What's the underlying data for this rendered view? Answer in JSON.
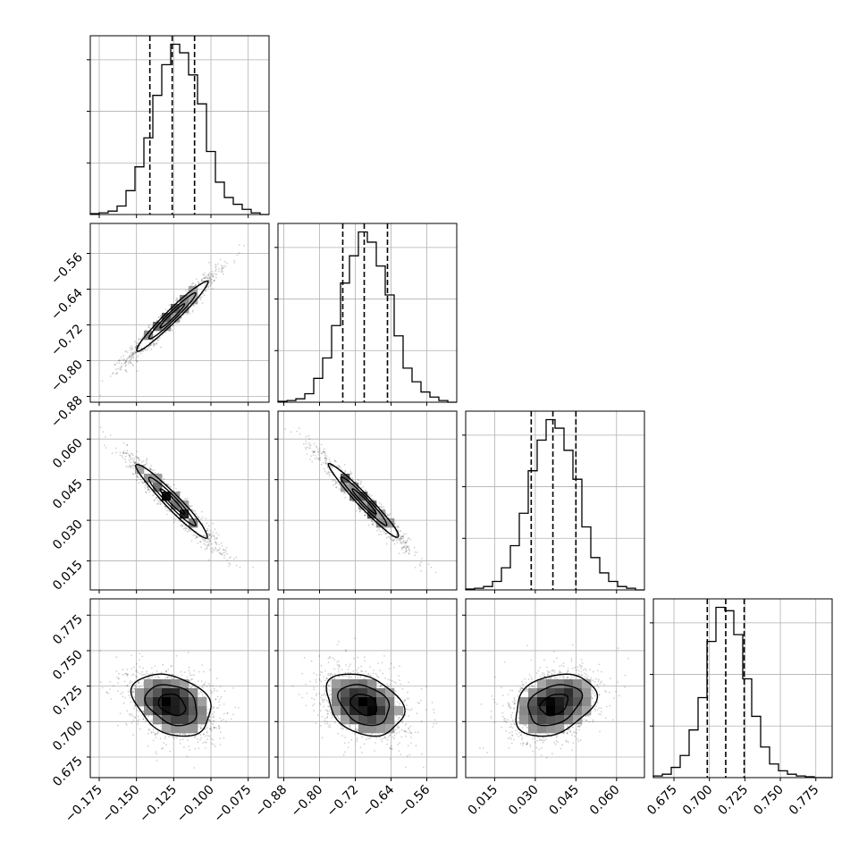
{
  "chart_data": {
    "type": "corner",
    "parameters": [
      {
        "ticks": [
          "−0.175",
          "−0.150",
          "−0.125",
          "−0.100",
          "−0.075"
        ],
        "tick_values": [
          -0.175,
          -0.15,
          -0.125,
          -0.1,
          -0.075
        ],
        "range": [
          -0.181,
          -0.061
        ],
        "mean": -0.126,
        "std": 0.015,
        "quantiles": [
          -0.141,
          -0.126,
          -0.111
        ],
        "hist_values": [
          0.5,
          1,
          2,
          5,
          14,
          28,
          45,
          70,
          88,
          100,
          95,
          82,
          65,
          37,
          19,
          10,
          6,
          3,
          1,
          0
        ]
      },
      {
        "ticks": [
          "−0.88",
          "−0.80",
          "−0.72",
          "−0.64",
          "−0.56"
        ],
        "tick_values": [
          -0.88,
          -0.8,
          -0.72,
          -0.64,
          -0.56
        ],
        "range": [
          -0.893,
          -0.493
        ],
        "mean": -0.7,
        "std": 0.049,
        "quantiles": [
          -0.748,
          -0.7,
          -0.648
        ],
        "hist_values": [
          0.5,
          1,
          2,
          5,
          14,
          26,
          45,
          70,
          86,
          100,
          94,
          80,
          63,
          39,
          20,
          12,
          6,
          3,
          1,
          0
        ]
      },
      {
        "ticks": [
          "0.015",
          "0.030",
          "0.045",
          "0.060"
        ],
        "tick_values": [
          0.015,
          0.03,
          0.045,
          0.06
        ],
        "range": [
          0.0043,
          0.0703
        ],
        "mean": 0.037,
        "std": 0.0085,
        "quantiles": [
          0.0285,
          0.0365,
          0.045
        ],
        "hist_values": [
          0.5,
          1,
          2,
          5,
          13,
          26,
          45,
          70,
          88,
          100,
          95,
          82,
          65,
          37,
          19,
          10,
          5,
          2,
          1,
          0
        ]
      },
      {
        "ticks": [
          "0.675",
          "0.700",
          "0.725",
          "0.750",
          "0.775"
        ],
        "tick_values": [
          0.675,
          0.7,
          0.725,
          0.75,
          0.775
        ],
        "range": [
          0.6605,
          0.7865
        ],
        "mean": 0.712,
        "std": 0.0125,
        "quantiles": [
          0.6985,
          0.7115,
          0.7245
        ],
        "hist_values": [
          1,
          2,
          6,
          13,
          28,
          47,
          80,
          100,
          98,
          84,
          58,
          36,
          18,
          8,
          4,
          2,
          1,
          0.5,
          0,
          0
        ]
      }
    ],
    "correlations": {
      "1-0": 0.97,
      "2-0": -0.96,
      "2-1": -0.97,
      "3-0": -0.3,
      "3-1": -0.3,
      "3-2": 0.3
    },
    "quantile_lines": "dashed",
    "grid": true
  }
}
